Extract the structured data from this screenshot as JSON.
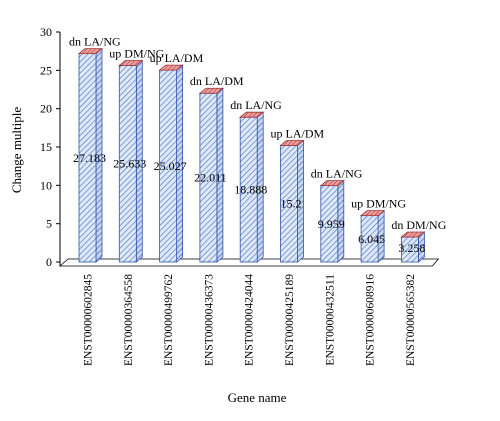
{
  "chart_data": {
    "type": "bar",
    "title": "",
    "xlabel": "Gene name",
    "ylabel": "Change multiple",
    "ylim": [
      0,
      30
    ],
    "yticks": [
      0,
      5,
      10,
      15,
      20,
      25,
      30
    ],
    "grid": false,
    "legend": "none",
    "style": "3d-hatched",
    "categories": [
      "ENST00000602845",
      "ENST00000364558",
      "ENST00000499762",
      "ENST00000436373",
      "ENST00000424044",
      "ENST00000425189",
      "ENST00000432511",
      "ENST00000608916",
      "ENST00000565382"
    ],
    "values": [
      27.183,
      25.633,
      25.027,
      22.011,
      18.888,
      15.2,
      9.959,
      6.045,
      3.258
    ],
    "value_labels": [
      "27.183",
      "25.633",
      "25.027",
      "22.011",
      "18.888",
      "15.2",
      "9.959",
      "6.045",
      "3.258"
    ],
    "annotations": [
      "dn LA/NG",
      "up DM/NG",
      "up LA/DM",
      "dn LA/DM",
      "dn LA/NG",
      "up LA/DM",
      "dn LA/NG",
      "up DM/NG",
      "dn DM/NG"
    ],
    "colors": {
      "bar_fill": "#dfe8f8",
      "bar_hatch": "#4a76c8",
      "bar_top": "#d97b7b",
      "bar_top_hatch": "#b03030",
      "axis": "#000000"
    }
  }
}
